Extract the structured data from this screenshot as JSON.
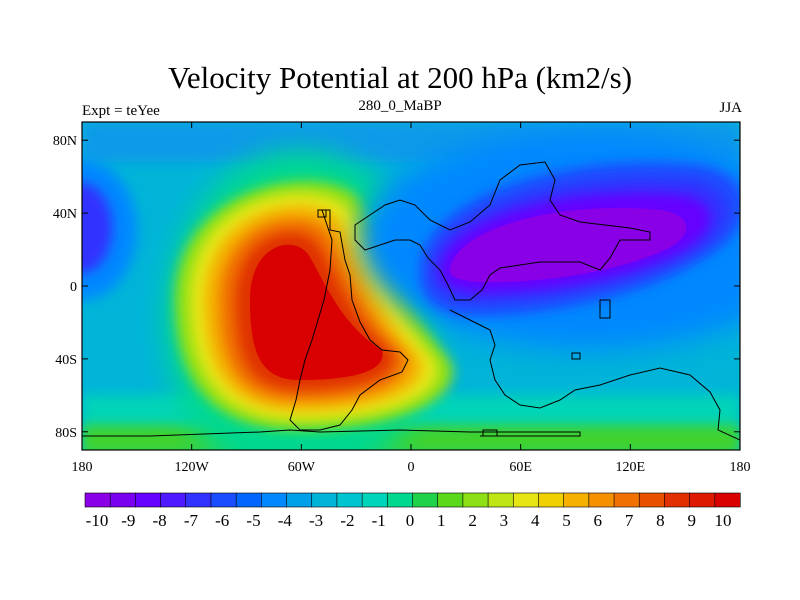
{
  "title": "Velocity Potential at 200 hPa (km2/s)",
  "left_string": "Expt = teYee",
  "center_string": "280_0_MaBP",
  "right_string": "JJA",
  "chart_data": {
    "type": "heatmap",
    "title": "Velocity Potential at 200 hPa (km2/s)",
    "xlabel": "",
    "ylabel": "",
    "xlim": [
      -180,
      180
    ],
    "ylim": [
      -90,
      90
    ],
    "x_ticks": [
      {
        "value": -180,
        "label": "180"
      },
      {
        "value": -120,
        "label": "120W"
      },
      {
        "value": -60,
        "label": "60W"
      },
      {
        "value": 0,
        "label": "0"
      },
      {
        "value": 60,
        "label": "60E"
      },
      {
        "value": 120,
        "label": "120E"
      },
      {
        "value": 180,
        "label": "180"
      }
    ],
    "y_ticks": [
      {
        "value": 80,
        "label": "80N"
      },
      {
        "value": 40,
        "label": "40N"
      },
      {
        "value": 0,
        "label": "0"
      },
      {
        "value": -40,
        "label": "40S"
      },
      {
        "value": -80,
        "label": "80S"
      }
    ],
    "colorbar": {
      "labels": [
        "-10",
        "-9",
        "-8",
        "-7",
        "-6",
        "-5",
        "-4",
        "-3",
        "-2",
        "-1",
        "0",
        "1",
        "2",
        "3",
        "4",
        "5",
        "6",
        "7",
        "8",
        "9",
        "10"
      ],
      "colors": [
        "#8a00e6",
        "#7a00f0",
        "#6600ff",
        "#4d1aff",
        "#3333ff",
        "#1a4dff",
        "#0066ff",
        "#0088ff",
        "#00a0e8",
        "#00b4d8",
        "#00c4d0",
        "#00d4b8",
        "#00d890",
        "#1ed24a",
        "#5ad81a",
        "#8ee014",
        "#bee614",
        "#e6e614",
        "#f0d000",
        "#f5b000",
        "#f59000",
        "#f07000",
        "#e85000",
        "#e03000",
        "#dd1a00",
        "#d80000"
      ]
    },
    "fields": [
      {
        "name": "positive-maximum",
        "lon": -45,
        "lat": 0,
        "value": 10
      },
      {
        "name": "negative-minimum-asia",
        "lon": 95,
        "lat": 20,
        "value": -10
      },
      {
        "name": "negative-minimum-pacific",
        "lon": -175,
        "lat": 30,
        "value": -7
      }
    ]
  }
}
